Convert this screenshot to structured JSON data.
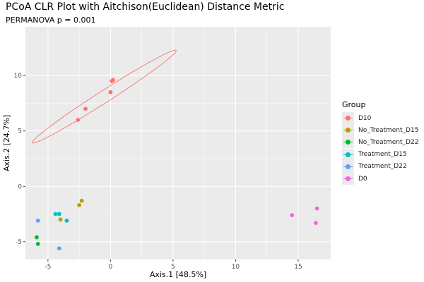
{
  "chart_data": {
    "type": "scatter",
    "title": "PCoA CLR Plot with Aitchison(Euclidean) Distance Metric",
    "subtitle": "PERMANOVA p = 0.001",
    "xlabel": "Axis.1   [48.5%]",
    "ylabel": "Axis.2   [24.7%]",
    "xlim": [
      -6.8,
      17.6
    ],
    "ylim": [
      -6.6,
      14.4
    ],
    "xticks": [
      -5,
      0,
      5,
      10,
      15
    ],
    "yticks": [
      -5,
      0,
      5,
      10
    ],
    "grid": true,
    "legend_title": "Group",
    "legend_position": "right",
    "series": [
      {
        "name": "D10",
        "color": "#f8766d",
        "x": [
          0.2,
          0.1,
          0.0,
          -2.0,
          -2.6
        ],
        "y": [
          9.6,
          9.5,
          8.5,
          7.0,
          6.0
        ]
      },
      {
        "name": "No_Treatment_D15",
        "color": "#b79f00",
        "x": [
          -2.3,
          -2.5,
          -4.0
        ],
        "y": [
          -1.3,
          -1.7,
          -3.0
        ]
      },
      {
        "name": "No_Treatment_D22",
        "color": "#00ba38",
        "x": [
          -5.9,
          -5.8
        ],
        "y": [
          -4.6,
          -5.2
        ]
      },
      {
        "name": "Treatment_D15",
        "color": "#00bfc4",
        "x": [
          -4.4,
          -4.1,
          -3.5
        ],
        "y": [
          -2.5,
          -2.5,
          -3.1
        ]
      },
      {
        "name": "Treatment_D22",
        "color": "#619cff",
        "x": [
          -5.8,
          -4.1
        ],
        "y": [
          -3.1,
          -5.6
        ]
      },
      {
        "name": "D0",
        "color": "#f564e3",
        "x": [
          14.5,
          16.5,
          16.4
        ],
        "y": [
          -2.6,
          -2.0,
          -3.3
        ]
      }
    ],
    "ellipse": {
      "series": "D10",
      "center": [
        -0.5,
        8.1
      ],
      "semi_major": 7.1,
      "semi_minor": 0.52,
      "angle_deg": 36
    }
  }
}
